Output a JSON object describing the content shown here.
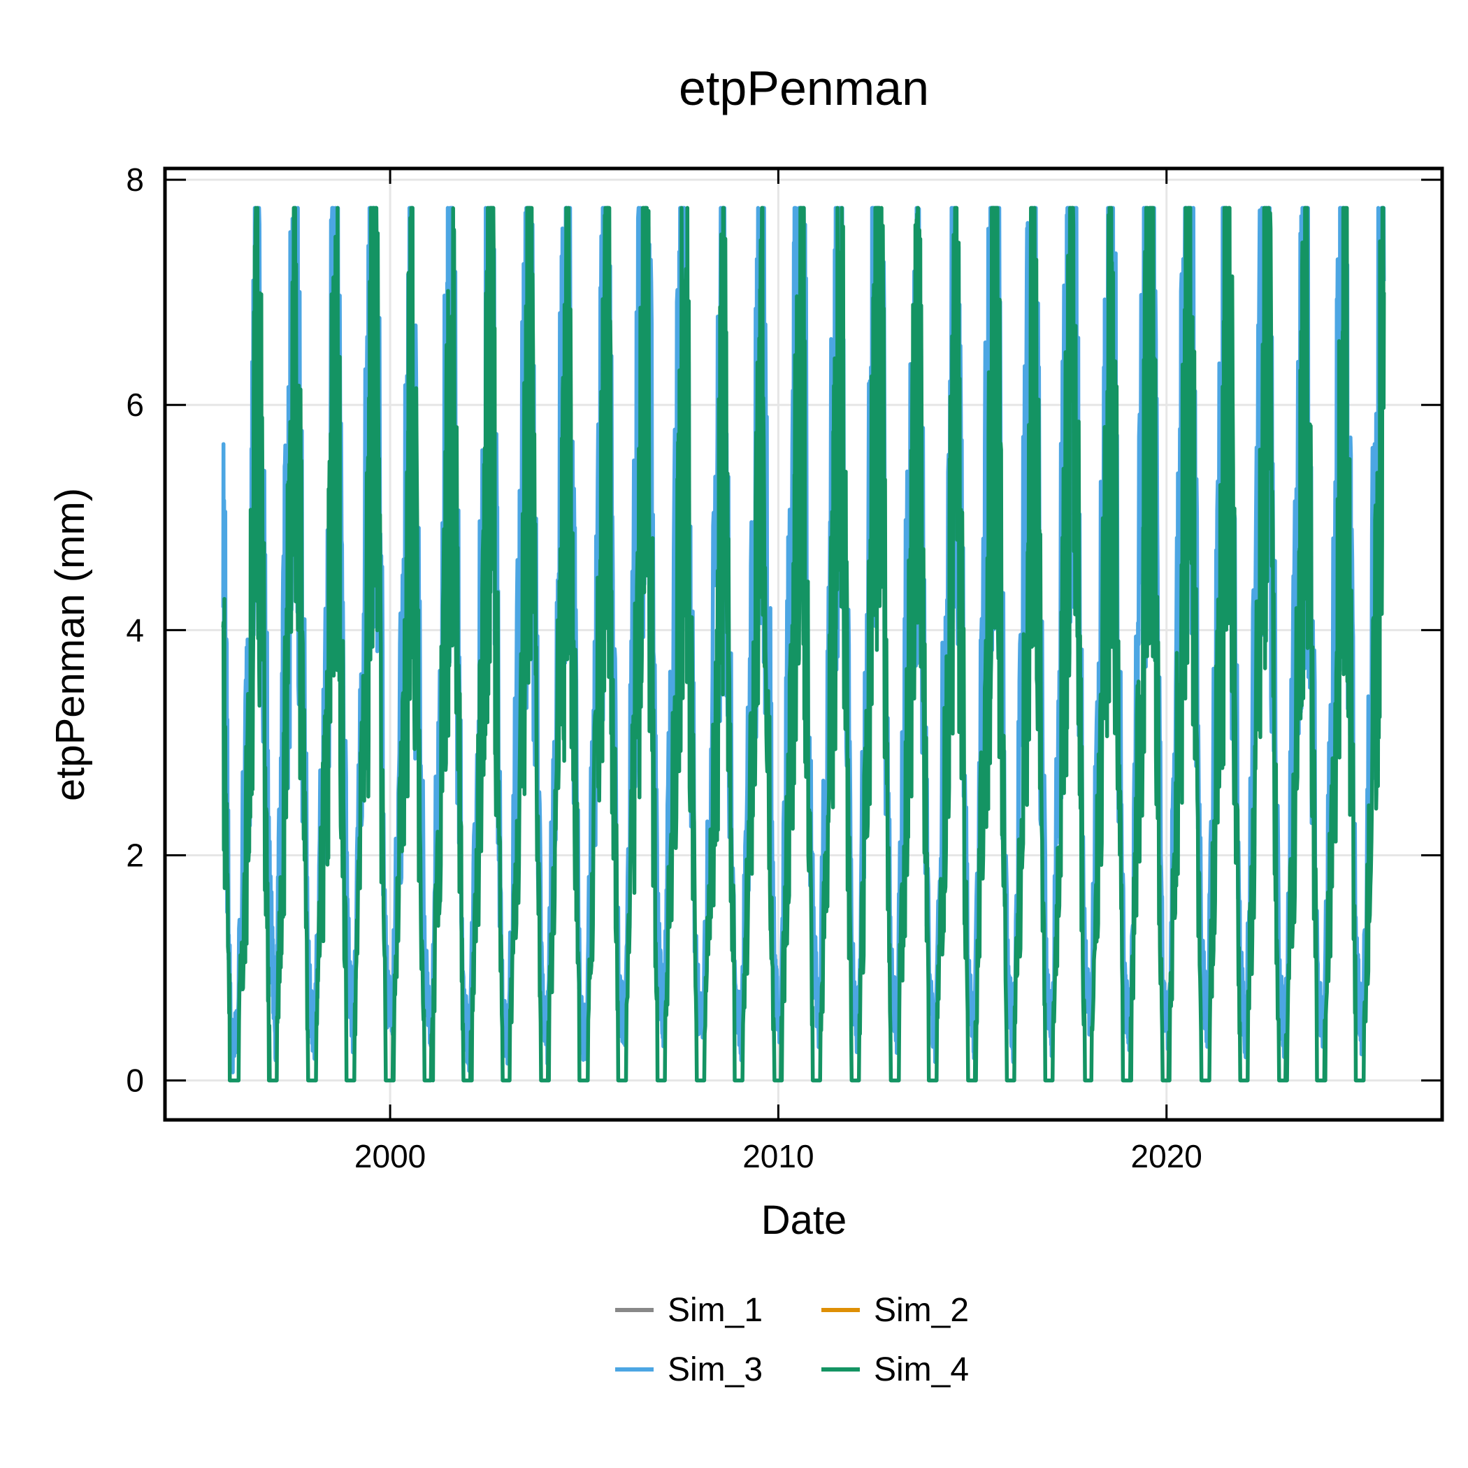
{
  "chart_data": {
    "type": "line",
    "title": "etpPenman",
    "xlabel": "Date",
    "ylabel": "etpPenman (mm)",
    "x_unit": "year",
    "xlim": [
      1994.2,
      2027.1
    ],
    "ylim": [
      -0.35,
      8.1
    ],
    "x_ticks": [
      2000,
      2010,
      2020
    ],
    "x_tick_labels": [
      "2000",
      "2010",
      "2020"
    ],
    "y_ticks": [
      0,
      2,
      4,
      6,
      8
    ],
    "y_tick_labels": [
      "0",
      "2",
      "4",
      "6",
      "8"
    ],
    "grid": true,
    "legend_position": "bottom",
    "x_range": [
      1995.7,
      2025.7
    ],
    "series": [
      {
        "name": "Sim_1",
        "color": "#888888",
        "values": []
      },
      {
        "name": "Sim_2",
        "color": "#DE8F05",
        "values": []
      },
      {
        "name": "Sim_3",
        "color": "#4CA6E3",
        "x": [
          1995.7,
          1995.9,
          1996.05,
          1996.35,
          1996.6,
          1996.9,
          1997.05,
          1997.3,
          1997.6,
          1997.9,
          1998.05,
          1998.4,
          1998.6,
          1998.9,
          1999.05,
          1999.4,
          1999.6,
          1999.9,
          2000.05,
          2000.4,
          2000.55,
          2000.9,
          2001.05,
          2001.4,
          2001.6,
          2001.9,
          2002.05,
          2002.4,
          2002.6,
          2002.9,
          2003.05,
          2003.4,
          2003.6,
          2003.9,
          2004.05,
          2004.4,
          2004.6,
          2004.9,
          2005.05,
          2005.4,
          2005.6,
          2005.9,
          2006.05,
          2006.4,
          2006.6,
          2006.9,
          2007.05,
          2007.4,
          2007.6,
          2007.9,
          2008.05,
          2008.4,
          2008.6,
          2008.9,
          2009.05,
          2009.4,
          2009.6,
          2009.9,
          2010.05,
          2010.4,
          2010.6,
          2010.9,
          2011.05,
          2011.4,
          2011.6,
          2011.9,
          2012.05,
          2012.4,
          2012.6,
          2012.9,
          2013.05,
          2013.4,
          2013.6,
          2013.9,
          2014.05,
          2014.4,
          2014.6,
          2014.9,
          2015.05,
          2015.4,
          2015.6,
          2015.9,
          2016.05,
          2016.4,
          2016.6,
          2016.9,
          2017.05,
          2017.4,
          2017.6,
          2017.9,
          2018.05,
          2018.4,
          2018.6,
          2018.9,
          2019.05,
          2019.4,
          2019.6,
          2019.9,
          2020.05,
          2020.4,
          2020.6,
          2020.9,
          2021.05,
          2021.4,
          2021.6,
          2021.9,
          2022.05,
          2022.4,
          2022.6,
          2022.9,
          2023.05,
          2023.4,
          2023.6,
          2023.9,
          2024.05,
          2024.4,
          2024.6,
          2024.9,
          2025.05,
          2025.4,
          2025.6
        ],
        "values": [
          4.8,
          0.3,
          0.4,
          3.5,
          7.1,
          1.5,
          0.4,
          4.1,
          6.7,
          0.9,
          0.3,
          4.4,
          7.1,
          1.2,
          0.4,
          5.0,
          7.5,
          0.9,
          0.5,
          4.5,
          6.7,
          1.0,
          0.4,
          5.0,
          6.9,
          0.6,
          0.3,
          5.0,
          7.5,
          0.5,
          0.4,
          4.8,
          6.9,
          0.9,
          0.4,
          5.1,
          6.8,
          0.5,
          0.4,
          4.9,
          7.0,
          0.8,
          0.4,
          5.7,
          7.7,
          1.2,
          0.4,
          5.4,
          7.2,
          0.8,
          0.5,
          4.5,
          6.4,
          0.7,
          0.4,
          5.0,
          6.9,
          0.9,
          0.4,
          5.5,
          7.4,
          1.2,
          0.5,
          5.2,
          7.2,
          1.0,
          0.4,
          5.8,
          7.7,
          0.9,
          0.5,
          5.0,
          7.0,
          0.7,
          0.4,
          5.2,
          6.7,
          0.8,
          0.4,
          5.6,
          7.5,
          0.9,
          0.4,
          5.3,
          7.2,
          0.9,
          0.4,
          5.8,
          7.7,
          1.0,
          0.5,
          5.3,
          7.1,
          1.0,
          0.4,
          5.8,
          7.7,
          0.9,
          0.4,
          5.7,
          7.7,
          1.0,
          0.5,
          5.3,
          7.2,
          0.9,
          0.4,
          5.4,
          7.7,
          0.9,
          0.4,
          4.9,
          6.9,
          0.8,
          0.4,
          5.1,
          7.1,
          0.9,
          0.4,
          5.3,
          7.1
        ]
      },
      {
        "name": "Sim_4",
        "color": "#149463",
        "x": [
          1995.7,
          1995.9,
          1996.05,
          1996.35,
          1996.6,
          1996.9,
          1997.05,
          1997.3,
          1997.6,
          1997.9,
          1998.05,
          1998.4,
          1998.6,
          1998.9,
          1999.05,
          1999.4,
          1999.6,
          1999.9,
          2000.05,
          2000.4,
          2000.55,
          2000.9,
          2001.05,
          2001.4,
          2001.6,
          2001.9,
          2002.05,
          2002.4,
          2002.6,
          2002.9,
          2003.05,
          2003.4,
          2003.6,
          2003.9,
          2004.05,
          2004.4,
          2004.6,
          2004.9,
          2005.05,
          2005.4,
          2005.6,
          2005.9,
          2006.05,
          2006.4,
          2006.6,
          2006.9,
          2007.05,
          2007.4,
          2007.6,
          2007.9,
          2008.05,
          2008.4,
          2008.6,
          2008.9,
          2009.05,
          2009.4,
          2009.6,
          2009.9,
          2010.05,
          2010.4,
          2010.6,
          2010.9,
          2011.05,
          2011.4,
          2011.6,
          2011.9,
          2012.05,
          2012.4,
          2012.6,
          2012.9,
          2013.05,
          2013.4,
          2013.6,
          2013.9,
          2014.05,
          2014.4,
          2014.6,
          2014.9,
          2015.05,
          2015.4,
          2015.6,
          2015.9,
          2016.05,
          2016.4,
          2016.6,
          2016.9,
          2017.05,
          2017.4,
          2017.6,
          2017.9,
          2018.05,
          2018.4,
          2018.6,
          2018.9,
          2019.05,
          2019.4,
          2019.6,
          2019.9,
          2020.05,
          2020.4,
          2020.6,
          2020.9,
          2021.05,
          2021.4,
          2021.6,
          2021.9,
          2022.05,
          2022.4,
          2022.6,
          2022.9,
          2023.05,
          2023.4,
          2023.6,
          2023.9,
          2024.05,
          2024.4,
          2024.6,
          2024.9,
          2025.05,
          2025.4,
          2025.6
        ],
        "values": [
          3.7,
          0,
          0,
          2.6,
          6.8,
          0,
          0,
          3.0,
          6.6,
          0,
          0,
          3.4,
          7.0,
          0,
          0,
          3.8,
          7.4,
          0,
          0,
          3.4,
          6.5,
          0,
          0,
          3.9,
          6.9,
          0,
          0,
          3.6,
          7.3,
          0,
          0,
          3.5,
          6.8,
          0,
          0,
          3.8,
          6.7,
          0,
          0,
          3.7,
          7.0,
          0,
          0,
          4.2,
          7.3,
          0,
          0,
          4.0,
          7.1,
          0,
          0,
          3.2,
          6.4,
          0,
          0,
          3.6,
          6.8,
          0,
          0,
          4.1,
          7.2,
          0,
          0,
          3.8,
          7.2,
          0,
          0,
          4.4,
          7.7,
          0,
          0,
          3.7,
          7.0,
          0,
          0,
          3.9,
          6.6,
          0,
          0,
          4.2,
          7.4,
          0,
          0,
          3.9,
          7.0,
          0,
          0,
          4.5,
          7.7,
          0,
          0,
          3.9,
          7.0,
          0,
          0,
          4.5,
          7.7,
          0,
          0,
          4.3,
          7.7,
          0,
          0,
          3.9,
          7.2,
          0,
          0,
          4.0,
          7.2,
          0,
          0,
          3.6,
          6.9,
          0,
          0,
          3.8,
          7.0,
          0,
          0,
          3.9,
          7.0
        ]
      }
    ]
  }
}
